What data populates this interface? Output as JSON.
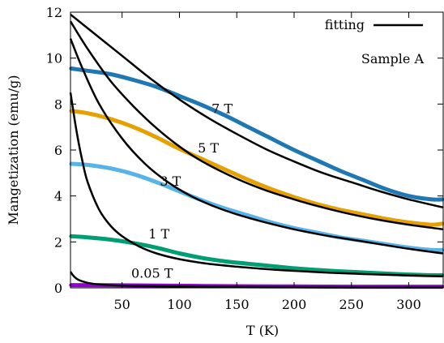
{
  "chart_data": {
    "type": "scatter",
    "xlabel": "T (K)",
    "ylabel": "Mangetization (emu/g)",
    "xlim": [
      5,
      330
    ],
    "ylim": [
      0,
      12
    ],
    "x_ticks": [
      50,
      100,
      150,
      200,
      250,
      300
    ],
    "y_ticks": [
      0,
      2,
      4,
      6,
      8,
      10,
      12
    ],
    "grid": false,
    "legend": {
      "position": "top-right",
      "entries": [
        {
          "label": "fitting",
          "color": "#000000",
          "style": "line"
        }
      ]
    },
    "annotation": "Sample A",
    "series": [
      {
        "name": "7 T",
        "color": "#1f77b4",
        "data": [
          [
            5,
            9.55
          ],
          [
            20,
            9.45
          ],
          [
            40,
            9.3
          ],
          [
            60,
            9.05
          ],
          [
            80,
            8.75
          ],
          [
            100,
            8.35
          ],
          [
            120,
            7.95
          ],
          [
            140,
            7.5
          ],
          [
            160,
            7.0
          ],
          [
            180,
            6.5
          ],
          [
            200,
            6.0
          ],
          [
            220,
            5.55
          ],
          [
            240,
            5.1
          ],
          [
            260,
            4.7
          ],
          [
            280,
            4.3
          ],
          [
            300,
            4.0
          ],
          [
            320,
            3.85
          ],
          [
            330,
            3.85
          ]
        ],
        "fit": [
          [
            5,
            11.9
          ],
          [
            25,
            11.1
          ],
          [
            50,
            10.1
          ],
          [
            75,
            9.1
          ],
          [
            100,
            8.2
          ],
          [
            125,
            7.4
          ],
          [
            150,
            6.7
          ],
          [
            175,
            6.05
          ],
          [
            200,
            5.5
          ],
          [
            225,
            5.0
          ],
          [
            250,
            4.6
          ],
          [
            275,
            4.2
          ],
          [
            300,
            3.85
          ],
          [
            330,
            3.5
          ]
        ]
      },
      {
        "name": "5 T",
        "color": "#e6a000",
        "data": [
          [
            5,
            7.7
          ],
          [
            20,
            7.6
          ],
          [
            40,
            7.35
          ],
          [
            60,
            7.0
          ],
          [
            80,
            6.55
          ],
          [
            100,
            6.05
          ],
          [
            120,
            5.6
          ],
          [
            140,
            5.15
          ],
          [
            160,
            4.7
          ],
          [
            180,
            4.3
          ],
          [
            200,
            3.95
          ],
          [
            220,
            3.65
          ],
          [
            240,
            3.4
          ],
          [
            260,
            3.2
          ],
          [
            280,
            3.0
          ],
          [
            300,
            2.85
          ],
          [
            320,
            2.75
          ],
          [
            330,
            2.8
          ]
        ],
        "fit": [
          [
            5,
            11.6
          ],
          [
            20,
            10.4
          ],
          [
            40,
            9.0
          ],
          [
            60,
            7.9
          ],
          [
            80,
            6.95
          ],
          [
            100,
            6.15
          ],
          [
            120,
            5.5
          ],
          [
            150,
            4.75
          ],
          [
            175,
            4.25
          ],
          [
            200,
            3.85
          ],
          [
            225,
            3.5
          ],
          [
            250,
            3.2
          ],
          [
            275,
            2.95
          ],
          [
            300,
            2.75
          ],
          [
            330,
            2.55
          ]
        ]
      },
      {
        "name": "3 T",
        "color": "#56b4e9",
        "data": [
          [
            5,
            5.4
          ],
          [
            20,
            5.35
          ],
          [
            40,
            5.2
          ],
          [
            60,
            4.95
          ],
          [
            80,
            4.6
          ],
          [
            100,
            4.2
          ],
          [
            120,
            3.8
          ],
          [
            140,
            3.45
          ],
          [
            160,
            3.15
          ],
          [
            180,
            2.85
          ],
          [
            200,
            2.6
          ],
          [
            220,
            2.4
          ],
          [
            240,
            2.2
          ],
          [
            260,
            2.05
          ],
          [
            280,
            1.9
          ],
          [
            300,
            1.75
          ],
          [
            320,
            1.65
          ],
          [
            330,
            1.65
          ]
        ],
        "fit": [
          [
            5,
            10.85
          ],
          [
            15,
            9.6
          ],
          [
            30,
            8.0
          ],
          [
            50,
            6.5
          ],
          [
            70,
            5.4
          ],
          [
            90,
            4.6
          ],
          [
            110,
            4.0
          ],
          [
            130,
            3.55
          ],
          [
            150,
            3.2
          ],
          [
            175,
            2.85
          ],
          [
            200,
            2.55
          ],
          [
            225,
            2.3
          ],
          [
            250,
            2.1
          ],
          [
            275,
            1.9
          ],
          [
            300,
            1.7
          ],
          [
            330,
            1.5
          ]
        ]
      },
      {
        "name": "1 T",
        "color": "#009e73",
        "data": [
          [
            5,
            2.25
          ],
          [
            20,
            2.2
          ],
          [
            40,
            2.1
          ],
          [
            60,
            1.95
          ],
          [
            80,
            1.75
          ],
          [
            100,
            1.5
          ],
          [
            120,
            1.3
          ],
          [
            140,
            1.15
          ],
          [
            160,
            1.05
          ],
          [
            180,
            0.95
          ],
          [
            200,
            0.85
          ],
          [
            220,
            0.78
          ],
          [
            240,
            0.72
          ],
          [
            260,
            0.67
          ],
          [
            280,
            0.62
          ],
          [
            300,
            0.58
          ],
          [
            320,
            0.55
          ],
          [
            330,
            0.55
          ]
        ],
        "fit": [
          [
            5,
            8.5
          ],
          [
            10,
            6.9
          ],
          [
            15,
            5.6
          ],
          [
            20,
            4.6
          ],
          [
            30,
            3.4
          ],
          [
            40,
            2.7
          ],
          [
            50,
            2.25
          ],
          [
            65,
            1.8
          ],
          [
            80,
            1.5
          ],
          [
            100,
            1.25
          ],
          [
            125,
            1.05
          ],
          [
            150,
            0.92
          ],
          [
            175,
            0.82
          ],
          [
            200,
            0.74
          ],
          [
            250,
            0.62
          ],
          [
            300,
            0.54
          ],
          [
            330,
            0.5
          ]
        ]
      },
      {
        "name": "0.05 T",
        "color": "#9400d3",
        "data": [
          [
            5,
            0.12
          ],
          [
            50,
            0.11
          ],
          [
            100,
            0.09
          ],
          [
            150,
            0.07
          ],
          [
            200,
            0.06
          ],
          [
            250,
            0.05
          ],
          [
            300,
            0.05
          ],
          [
            330,
            0.05
          ]
        ],
        "fit": [
          [
            5,
            0.7
          ],
          [
            8,
            0.5
          ],
          [
            12,
            0.35
          ],
          [
            20,
            0.22
          ],
          [
            30,
            0.15
          ],
          [
            50,
            0.1
          ],
          [
            80,
            0.07
          ],
          [
            120,
            0.05
          ],
          [
            200,
            0.03
          ],
          [
            330,
            0.02
          ]
        ]
      }
    ],
    "labels": [
      {
        "text": "7 T",
        "x": 128,
        "y": 7.6
      },
      {
        "text": "5 T",
        "x": 116,
        "y": 5.9
      },
      {
        "text": "3 T",
        "x": 83,
        "y": 4.45
      },
      {
        "text": "1 T",
        "x": 73,
        "y": 2.15
      },
      {
        "text": "0.05 T",
        "x": 58,
        "y": 0.45
      }
    ]
  }
}
